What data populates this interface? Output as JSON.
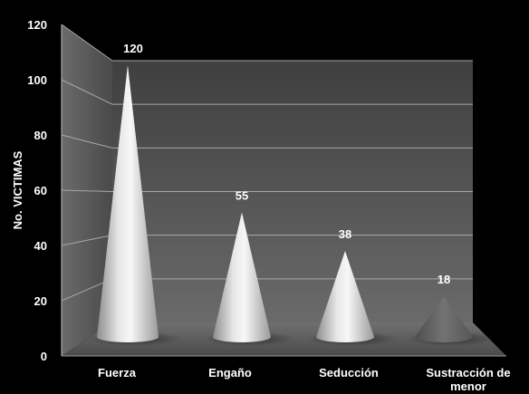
{
  "chart_data": {
    "type": "bar",
    "bar_shape": "cone",
    "categories": [
      "Fuerza",
      "Engaño",
      "Seducción",
      "Sustracción de menor"
    ],
    "category_lines": [
      [
        "Fuerza"
      ],
      [
        "Engaño"
      ],
      [
        "Seducción"
      ],
      [
        "Sustracción de",
        "menor"
      ]
    ],
    "values": [
      120,
      55,
      38,
      18
    ],
    "value_labels": [
      "120",
      "55",
      "38",
      "18"
    ],
    "xlabel": "",
    "ylabel": "No. VICTIMAS",
    "ylim": [
      0,
      120
    ],
    "yticks": [
      "0",
      "20",
      "40",
      "60",
      "80",
      "100",
      "120"
    ],
    "grid": true,
    "legend": "none",
    "colors": {
      "background": "#000000",
      "wall_top": "#3f3f3f",
      "wall_bottom": "#676767",
      "floor": "#5a5a5a",
      "gridline": "#a8a8a8",
      "cone_highlight": "#f4f4f4",
      "cone_shadow": "#7a7a7a",
      "cone_last": "#5c5c5c",
      "text": "#ffffff"
    }
  }
}
